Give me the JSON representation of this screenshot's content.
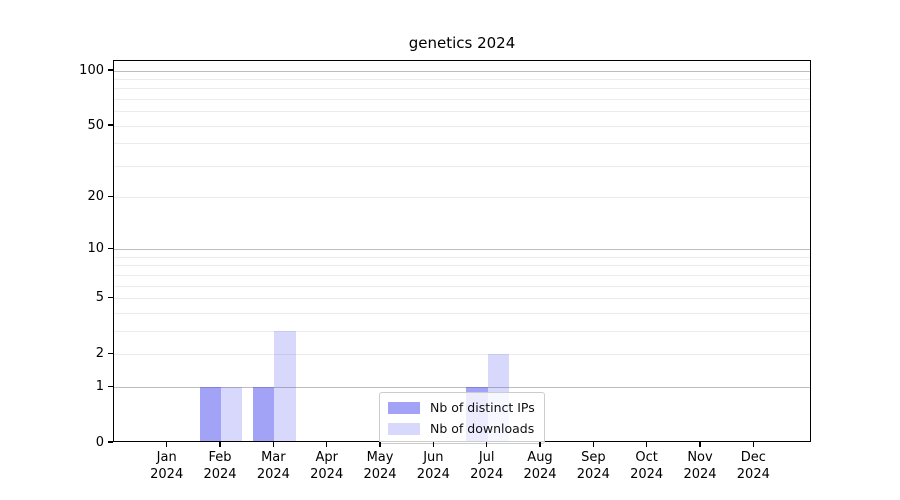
{
  "chart_data": {
    "type": "bar",
    "title": "genetics 2024",
    "categories": [
      "Jan 2024",
      "Feb 2024",
      "Mar 2024",
      "Apr 2024",
      "May 2024",
      "Jun 2024",
      "Jul 2024",
      "Aug 2024",
      "Sep 2024",
      "Oct 2024",
      "Nov 2024",
      "Dec 2024"
    ],
    "series": [
      {
        "name": "Nb of distinct IPs",
        "color": "rgba(70,70,240,0.5)",
        "values": [
          0,
          1,
          1,
          0,
          0,
          0,
          1,
          0,
          0,
          0,
          0,
          0
        ]
      },
      {
        "name": "Nb of downloads",
        "color": "rgba(70,70,240,0.21)",
        "values": [
          0,
          1,
          3,
          0,
          0,
          0,
          2,
          0,
          0,
          0,
          0,
          0
        ]
      }
    ],
    "xlabel": "",
    "ylabel": "",
    "scale": "log1p",
    "ylim": [
      0,
      113
    ],
    "y_ticks": [
      0,
      1,
      2,
      5,
      10,
      20,
      50,
      100
    ],
    "major_gridlines": [
      1,
      10,
      100
    ],
    "minor_gridlines": [
      2,
      3,
      4,
      5,
      6,
      7,
      8,
      9,
      20,
      30,
      40,
      50,
      60,
      70,
      80,
      90
    ],
    "grid": "on",
    "legend_position": "lower center, overlapping Jul bars",
    "colors": {
      "major_grid": "#bdbdbd",
      "minor_grid": "#ececec",
      "spine": "#000000"
    }
  }
}
